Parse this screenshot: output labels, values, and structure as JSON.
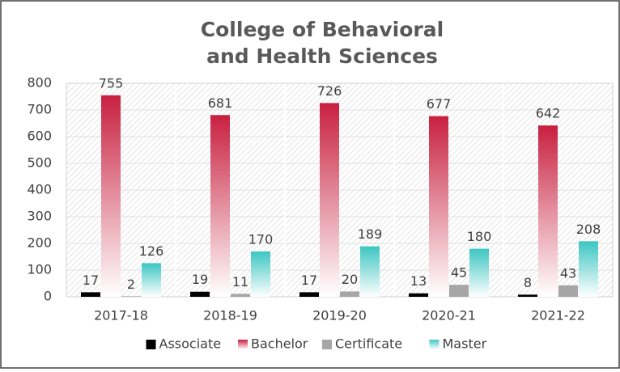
{
  "chart_data": {
    "type": "bar",
    "title": [
      "College of Behavioral",
      "and Health Sciences"
    ],
    "categories": [
      "2017-18",
      "2018-19",
      "2019-20",
      "2020-21",
      "2021-22"
    ],
    "series": [
      {
        "name": "Associate",
        "color": "#000000",
        "values": [
          17,
          19,
          17,
          13,
          8
        ]
      },
      {
        "name": "Bachelor",
        "color": "#c8203f",
        "values": [
          755,
          681,
          726,
          677,
          642
        ]
      },
      {
        "name": "Certificate",
        "color": "#a6a6a6",
        "values": [
          2,
          11,
          20,
          45,
          43
        ]
      },
      {
        "name": "Master",
        "color": "#3cc6c2",
        "values": [
          126,
          170,
          189,
          180,
          208
        ]
      }
    ],
    "ylim": [
      0,
      800
    ],
    "yticks": [
      0,
      100,
      200,
      300,
      400,
      500,
      600,
      700,
      800
    ],
    "grid": true,
    "legend": "bottom"
  }
}
